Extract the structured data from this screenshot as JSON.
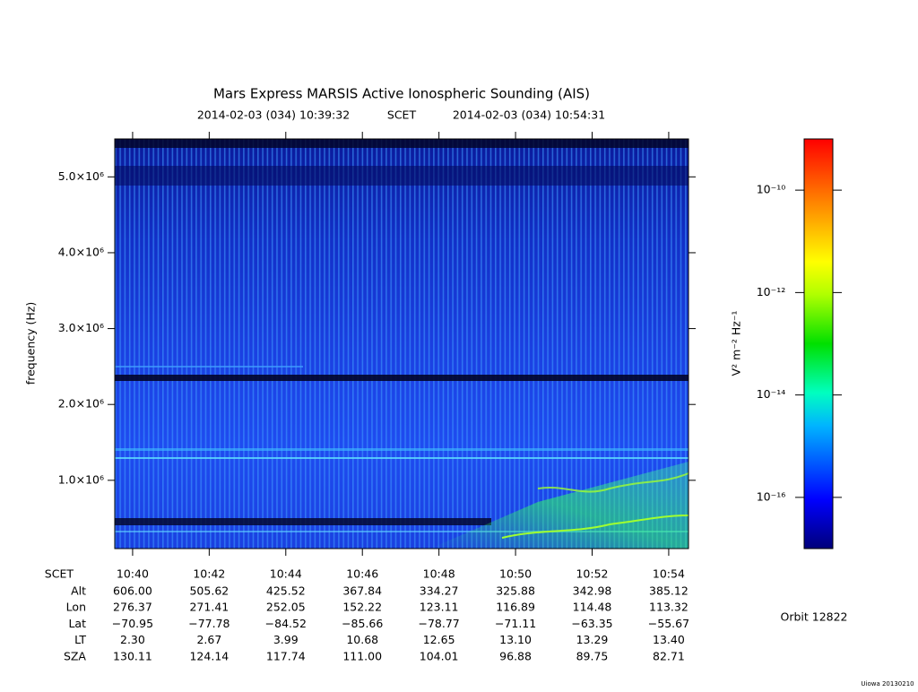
{
  "chart_data": {
    "type": "spectrogram",
    "title": "Mars Express MARSIS Active Ionospheric Sounding (AIS)",
    "time_range": {
      "start": "2014-02-03 (034) 10:39:32",
      "label": "SCET",
      "end": "2014-02-03 (034) 10:54:31"
    },
    "ylabel": "frequency (Hz)",
    "xlim": [
      "10:39:32",
      "10:54:31"
    ],
    "xticks": [
      "10:40",
      "10:42",
      "10:44",
      "10:46",
      "10:48",
      "10:50",
      "10:52",
      "10:54"
    ],
    "ylim": [
      100000,
      5500000
    ],
    "yticks": [
      {
        "value": 1000000,
        "label": "1.0×10⁶"
      },
      {
        "value": 2000000,
        "label": "2.0×10⁶"
      },
      {
        "value": 3000000,
        "label": "3.0×10⁶"
      },
      {
        "value": 4000000,
        "label": "4.0×10⁶"
      },
      {
        "value": 5000000,
        "label": "5.0×10⁶"
      }
    ],
    "colorbar": {
      "label": "V² m⁻² Hz⁻¹",
      "log": true,
      "lim": [
        1e-17,
        1e-09
      ],
      "ticks": [
        {
          "value": 1e-16,
          "label": "10⁻¹⁶"
        },
        {
          "value": 1e-14,
          "label": "10⁻¹⁴"
        },
        {
          "value": 1e-12,
          "label": "10⁻¹²"
        },
        {
          "value": 1e-10,
          "label": "10⁻¹⁰"
        }
      ]
    },
    "ephemeris": {
      "time_label": "SCET",
      "rows": [
        {
          "name": "Alt",
          "values": [
            "606.00",
            "505.62",
            "425.52",
            "367.84",
            "334.27",
            "325.88",
            "342.98",
            "385.12"
          ]
        },
        {
          "name": "Lon",
          "values": [
            "276.37",
            "271.41",
            "252.05",
            "152.22",
            "123.11",
            "116.89",
            "114.48",
            "113.32"
          ]
        },
        {
          "name": "Lat",
          "values": [
            "−70.95",
            "−77.78",
            "−84.52",
            "−85.66",
            "−78.77",
            "−71.11",
            "−63.35",
            "−55.67"
          ]
        },
        {
          "name": "LT",
          "values": [
            "2.30",
            "2.67",
            "3.99",
            "10.68",
            "12.65",
            "13.10",
            "13.29",
            "13.40"
          ]
        },
        {
          "name": "SZA",
          "values": [
            "130.11",
            "124.14",
            "117.74",
            "111.00",
            "104.01",
            "96.88",
            "89.75",
            "82.71"
          ]
        }
      ]
    },
    "orbit": "Orbit 12822",
    "credit": "Uiowa 20130210"
  }
}
